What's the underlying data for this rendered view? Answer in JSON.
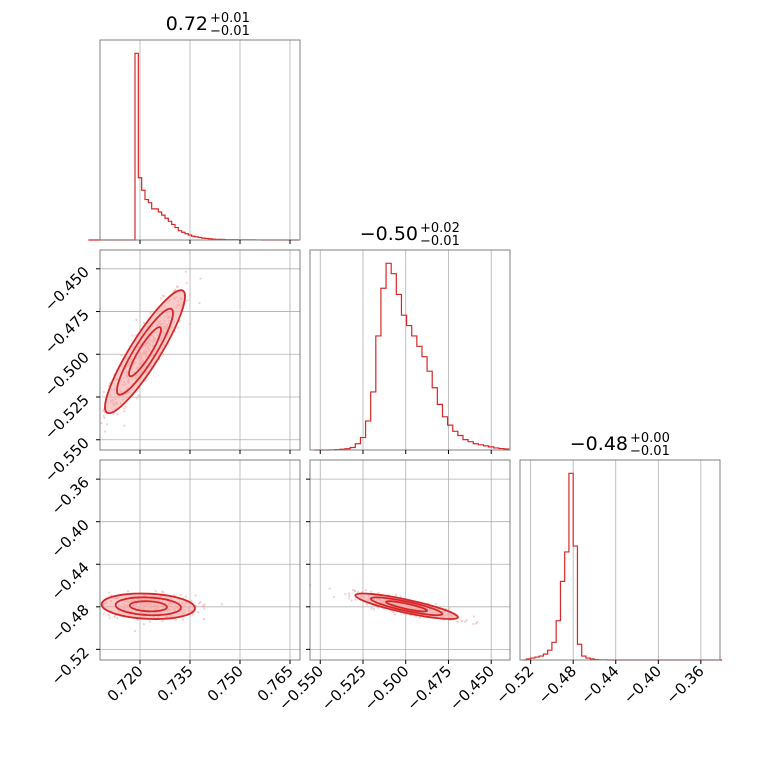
{
  "colors": {
    "accent": "#d62728",
    "fill": "#f4a3a3",
    "points": "#f3b6b6",
    "grid": "#b0b0b0",
    "frame": "#808080",
    "text": "#000000"
  },
  "chart_data": {
    "type": "corner",
    "grid": true,
    "parameters": [
      {
        "label": "",
        "title_median": "0.72",
        "title_plus": "+0.01",
        "title_minus": "−0.01",
        "range": [
          0.708,
          0.768
        ],
        "ticks": [
          0.72,
          0.735,
          0.75,
          0.765
        ],
        "tick_labels": [
          "0.720",
          "0.735",
          "0.750",
          "0.765"
        ],
        "hist": {
          "bins": [
            0.7045,
            0.7055,
            0.7065,
            0.7075,
            0.7085,
            0.7095,
            0.7105,
            0.7115,
            0.7125,
            0.7135,
            0.7145,
            0.7155,
            0.7165,
            0.7175,
            0.7185,
            0.7195,
            0.7205,
            0.7215,
            0.7225,
            0.7235,
            0.7245,
            0.7255,
            0.7265,
            0.7275,
            0.7285,
            0.7295,
            0.7305,
            0.7315,
            0.7325,
            0.7335,
            0.7345,
            0.7355,
            0.7365,
            0.7375,
            0.7385,
            0.7395,
            0.7405,
            0.7415,
            0.7425,
            0.7435,
            0.7445,
            0.7455,
            0.7465,
            0.7475,
            0.7485,
            0.7495,
            0.7505,
            0.7515,
            0.7525,
            0.7535,
            0.7545,
            0.7555,
            0.7565,
            0.7575,
            0.7585,
            0.7595,
            0.7605,
            0.7615,
            0.7625,
            0.7635,
            0.7645,
            0.7655,
            0.7665,
            0.7675
          ],
          "counts": [
            0,
            0,
            0,
            0,
            0,
            0,
            0,
            0,
            0,
            0,
            0,
            0,
            0,
            0,
            0.6,
            0.2,
            0.16,
            0.13,
            0.12,
            0.1,
            0.1,
            0.09,
            0.08,
            0.07,
            0.06,
            0.05,
            0.04,
            0.03,
            0.025,
            0.02,
            0.016,
            0.012,
            0.01,
            0.008,
            0.006,
            0.005,
            0.004,
            0.003,
            0.002,
            0.002,
            0.0015,
            0.001,
            0.001,
            0.001,
            0.0008,
            0.0005,
            0.0005,
            0.0004,
            0.0003,
            0.0003,
            0.0002,
            0.0002,
            0.0001,
            0.0001,
            0.0001,
            0.0001,
            0.0001,
            0.0001,
            0.0001,
            0.0001,
            0.0001,
            0.0001,
            0.0001
          ]
        }
      },
      {
        "label": "",
        "title_median": "−0.50",
        "title_plus": "+0.02",
        "title_minus": "−0.01",
        "range": [
          -0.556,
          -0.439
        ],
        "ticks": [
          -0.55,
          -0.525,
          -0.5,
          -0.475,
          -0.45
        ],
        "tick_labels": [
          "−0.550",
          "−0.525",
          "−0.500",
          "−0.475",
          "−0.450"
        ],
        "hist": {
          "bins": [
            -0.5535,
            -0.5505,
            -0.5475,
            -0.5445,
            -0.5415,
            -0.5385,
            -0.5355,
            -0.5325,
            -0.5295,
            -0.5265,
            -0.5235,
            -0.5205,
            -0.5175,
            -0.5145,
            -0.5115,
            -0.5085,
            -0.5055,
            -0.5025,
            -0.4995,
            -0.4965,
            -0.4935,
            -0.4905,
            -0.4875,
            -0.4845,
            -0.4815,
            -0.4785,
            -0.4755,
            -0.4725,
            -0.4695,
            -0.4665,
            -0.4635,
            -0.4605,
            -0.4575,
            -0.4545,
            -0.4515,
            -0.4485,
            -0.4455,
            -0.4425,
            -0.4395
          ],
          "counts": [
            0,
            0,
            0,
            0.001,
            0.002,
            0.004,
            0.006,
            0.012,
            0.03,
            0.06,
            0.14,
            0.28,
            0.55,
            0.78,
            0.9,
            0.85,
            0.75,
            0.65,
            0.6,
            0.55,
            0.5,
            0.45,
            0.38,
            0.3,
            0.22,
            0.16,
            0.12,
            0.09,
            0.07,
            0.05,
            0.04,
            0.03,
            0.025,
            0.02,
            0.015,
            0.01,
            0.007,
            0.005
          ]
        }
      },
      {
        "label": "",
        "title_median": "−0.48",
        "title_plus": "+0.00",
        "title_minus": "−0.01",
        "range": [
          -0.53,
          -0.342
        ],
        "ticks": [
          -0.52,
          -0.48,
          -0.44,
          -0.4,
          -0.36
        ],
        "tick_labels": [
          "−0.52",
          "−0.48",
          "−0.44",
          "−0.40",
          "−0.36"
        ],
        "hist": {
          "bins": [
            -0.528,
            -0.524,
            -0.52,
            -0.516,
            -0.512,
            -0.508,
            -0.504,
            -0.5,
            -0.496,
            -0.492,
            -0.488,
            -0.484,
            -0.48,
            -0.476,
            -0.472,
            -0.468,
            -0.464,
            -0.46,
            -0.456,
            -0.452,
            -0.448,
            -0.444,
            -0.44,
            -0.436,
            -0.432,
            -0.428,
            -0.424,
            -0.42,
            -0.416,
            -0.412,
            -0.408,
            -0.404,
            -0.4,
            -0.396,
            -0.392,
            -0.388,
            -0.384,
            -0.38,
            -0.376,
            -0.372,
            -0.368,
            -0.364,
            -0.36,
            -0.356,
            -0.352,
            -0.348,
            -0.344,
            -0.34
          ],
          "counts": [
            0,
            0.005,
            0.01,
            0.015,
            0.02,
            0.03,
            0.05,
            0.09,
            0.2,
            0.4,
            0.55,
            0.95,
            0.58,
            0.08,
            0.02,
            0.01,
            0.005,
            0.002,
            0.001,
            0.001,
            0,
            0,
            0,
            0,
            0,
            0,
            0,
            0,
            0,
            0,
            0,
            0,
            0,
            0,
            0,
            0,
            0,
            0,
            0,
            0,
            0,
            0,
            0,
            0,
            0,
            0,
            0
          ]
        }
      }
    ],
    "pairs": [
      {
        "x": 0,
        "y": 1,
        "center": [
          0.7215,
          -0.4985
        ],
        "spread": [
          0.006,
          0.018
        ],
        "corr": 0.9
      },
      {
        "x": 0,
        "y": 2,
        "center": [
          0.7225,
          -0.4795
        ],
        "spread": [
          0.007,
          0.006
        ],
        "corr": -0.15
      },
      {
        "x": 1,
        "y": 2,
        "center": [
          -0.4995,
          -0.4795
        ],
        "spread": [
          0.015,
          0.006
        ],
        "corr": -0.85
      }
    ]
  }
}
